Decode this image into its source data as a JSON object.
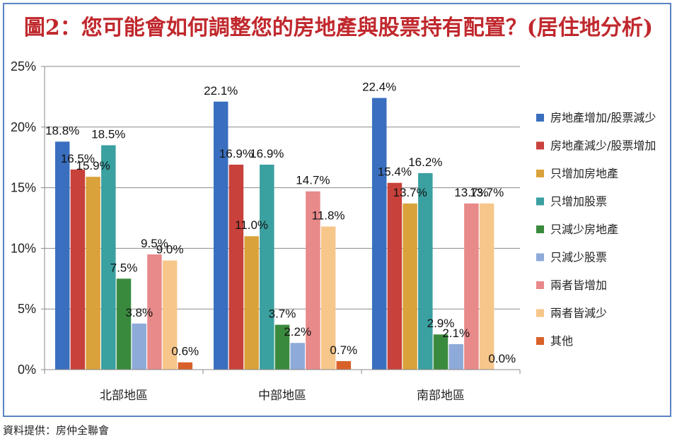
{
  "title": "圖2：您可能會如何調整您的房地產與股票持有配置？(居住地分析)",
  "source": "資料提供：房仲全聯會",
  "chart_data": {
    "type": "bar",
    "categories": [
      "北部地區",
      "中部地區",
      "南部地區"
    ],
    "y_ticks": [
      "0%",
      "5%",
      "10%",
      "15%",
      "20%",
      "25%"
    ],
    "ylim": [
      0,
      25
    ],
    "grid": true,
    "legend_position": "right",
    "series": [
      {
        "name": "房地產增加/股票減少",
        "color": "#3a6fbf",
        "values": [
          18.8,
          22.1,
          22.4
        ],
        "labels": [
          "18.8%",
          "22.1%",
          "22.4%"
        ]
      },
      {
        "name": "房地產減少/股票增加",
        "color": "#c8413a",
        "values": [
          16.5,
          16.9,
          15.4
        ],
        "labels": [
          "16.5%",
          "16.9%",
          "15.4%"
        ]
      },
      {
        "name": "只增加房地產",
        "color": "#d9a23a",
        "values": [
          15.9,
          11.0,
          13.7
        ],
        "labels": [
          "15.9%",
          "11.0%",
          "13.7%"
        ]
      },
      {
        "name": "只增加股票",
        "color": "#3aa0a0",
        "values": [
          18.5,
          16.9,
          16.2
        ],
        "labels": [
          "18.5%",
          "16.9%",
          "16.2%"
        ]
      },
      {
        "name": "只減少房地產",
        "color": "#3a8a3e",
        "values": [
          7.5,
          3.7,
          2.9
        ],
        "labels": [
          "7.5%",
          "3.7%",
          "2.9%"
        ]
      },
      {
        "name": "只減少股票",
        "color": "#8eaad8",
        "values": [
          3.8,
          2.2,
          2.1
        ],
        "labels": [
          "3.8%",
          "2.2%",
          "2.1%"
        ]
      },
      {
        "name": "兩者皆增加",
        "color": "#e8898a",
        "values": [
          9.5,
          14.7,
          13.7
        ],
        "labels": [
          "9.5%",
          "14.7%",
          "13.7%"
        ]
      },
      {
        "name": "兩者皆減少",
        "color": "#f6c68a",
        "values": [
          9.0,
          11.8,
          13.7
        ],
        "labels": [
          "9.0%",
          "11.8%",
          "13.7%"
        ]
      },
      {
        "name": "其他",
        "color": "#d8612a",
        "values": [
          0.6,
          0.7,
          0.0
        ],
        "labels": [
          "0.6%",
          "0.7%",
          "0.0%"
        ]
      }
    ]
  }
}
